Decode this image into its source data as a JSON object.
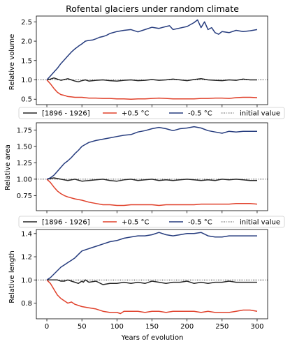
{
  "chart_data": [
    {
      "type": "line",
      "title": "Rofental glaciers under random climate",
      "ylabel": "Relative volume",
      "xlabel": "",
      "xlim": [
        -15,
        315
      ],
      "ylim": [
        0.36,
        2.65
      ],
      "xticks": [
        0,
        50,
        100,
        150,
        200,
        250,
        300
      ],
      "xtick_labels": [
        "",
        "",
        "",
        "",
        "",
        "",
        ""
      ],
      "yticks": [
        0.5,
        1.0,
        1.5,
        2.0,
        2.5
      ],
      "ytick_labels": [
        "0.5",
        "1.0",
        "1.5",
        "2.0",
        "2.5"
      ],
      "grid": false,
      "legend_position": "bottom",
      "reference_line": 1.0,
      "series": [
        {
          "name": "[1896 - 1926]",
          "color": "#262626",
          "x": [
            0,
            5,
            10,
            15,
            20,
            25,
            30,
            35,
            40,
            45,
            50,
            55,
            60,
            70,
            80,
            90,
            100,
            110,
            120,
            130,
            140,
            150,
            160,
            170,
            180,
            190,
            200,
            210,
            220,
            230,
            240,
            250,
            260,
            270,
            280,
            290,
            300
          ],
          "values": [
            1.0,
            1.02,
            1.05,
            1.02,
            0.99,
            1.01,
            1.03,
            1.0,
            0.97,
            0.95,
            0.98,
            1.0,
            0.97,
            0.99,
            1.0,
            0.98,
            0.97,
            0.99,
            1.0,
            0.98,
            0.99,
            1.01,
            0.99,
            1.0,
            1.02,
            1.0,
            0.98,
            1.01,
            1.03,
            1.0,
            0.99,
            0.98,
            1.0,
            0.99,
            1.02,
            1.0,
            1.0
          ]
        },
        {
          "name": "+0.5 °C",
          "color": "#e0402a",
          "x": [
            0,
            5,
            10,
            15,
            20,
            25,
            30,
            35,
            40,
            50,
            60,
            70,
            80,
            90,
            100,
            110,
            120,
            130,
            140,
            150,
            160,
            170,
            180,
            190,
            200,
            210,
            220,
            230,
            240,
            250,
            260,
            270,
            280,
            290,
            300
          ],
          "values": [
            1.0,
            0.9,
            0.78,
            0.68,
            0.62,
            0.6,
            0.57,
            0.56,
            0.55,
            0.55,
            0.53,
            0.53,
            0.52,
            0.52,
            0.51,
            0.51,
            0.5,
            0.51,
            0.51,
            0.52,
            0.53,
            0.52,
            0.51,
            0.51,
            0.51,
            0.51,
            0.52,
            0.52,
            0.53,
            0.53,
            0.52,
            0.54,
            0.55,
            0.55,
            0.54
          ]
        },
        {
          "name": "-0.5 °C",
          "color": "#263c7e",
          "x": [
            0,
            5,
            10,
            15,
            20,
            25,
            30,
            35,
            40,
            45,
            50,
            55,
            60,
            65,
            70,
            75,
            80,
            85,
            90,
            100,
            110,
            120,
            130,
            140,
            150,
            160,
            170,
            175,
            180,
            190,
            200,
            210,
            215,
            220,
            225,
            230,
            235,
            240,
            245,
            250,
            260,
            270,
            280,
            290,
            300
          ],
          "values": [
            1.0,
            1.1,
            1.2,
            1.3,
            1.42,
            1.52,
            1.62,
            1.72,
            1.8,
            1.87,
            1.93,
            2.0,
            2.02,
            2.03,
            2.06,
            2.1,
            2.12,
            2.15,
            2.2,
            2.25,
            2.28,
            2.3,
            2.24,
            2.3,
            2.36,
            2.33,
            2.38,
            2.4,
            2.3,
            2.34,
            2.38,
            2.48,
            2.55,
            2.35,
            2.5,
            2.3,
            2.35,
            2.22,
            2.18,
            2.25,
            2.22,
            2.28,
            2.25,
            2.27,
            2.3
          ]
        }
      ],
      "reference_name": "initial value"
    },
    {
      "type": "line",
      "title": "",
      "ylabel": "Relative area",
      "xlabel": "",
      "xlim": [
        -15,
        315
      ],
      "ylim": [
        0.52,
        1.86
      ],
      "xticks": [
        0,
        50,
        100,
        150,
        200,
        250,
        300
      ],
      "xtick_labels": [
        "",
        "",
        "",
        "",
        "",
        "",
        ""
      ],
      "yticks": [
        0.75,
        1.0,
        1.25,
        1.5,
        1.75
      ],
      "ytick_labels": [
        "0.75",
        "1.00",
        "1.25",
        "1.50",
        "1.75"
      ],
      "grid": false,
      "legend_position": "bottom",
      "reference_line": 1.0,
      "series": [
        {
          "name": "[1896 - 1926]",
          "color": "#262626",
          "x": [
            0,
            10,
            20,
            30,
            40,
            50,
            60,
            70,
            80,
            90,
            100,
            110,
            120,
            130,
            140,
            150,
            160,
            170,
            180,
            190,
            200,
            210,
            220,
            230,
            240,
            250,
            260,
            270,
            280,
            290,
            300
          ],
          "values": [
            1.0,
            1.02,
            1.0,
            0.98,
            1.0,
            0.97,
            0.98,
            0.99,
            1.0,
            0.98,
            0.97,
            0.99,
            1.0,
            0.98,
            0.99,
            1.0,
            0.98,
            0.99,
            0.98,
            0.99,
            1.0,
            0.99,
            0.98,
            0.99,
            0.98,
            1.0,
            0.99,
            1.0,
            0.99,
            0.98,
            0.98
          ]
        },
        {
          "name": "+0.5 °C",
          "color": "#e0402a",
          "x": [
            0,
            5,
            10,
            15,
            20,
            25,
            30,
            40,
            50,
            60,
            70,
            80,
            90,
            100,
            110,
            120,
            130,
            140,
            150,
            160,
            170,
            180,
            190,
            200,
            210,
            220,
            230,
            240,
            250,
            260,
            270,
            280,
            290,
            300
          ],
          "values": [
            1.0,
            0.95,
            0.88,
            0.82,
            0.78,
            0.75,
            0.73,
            0.7,
            0.68,
            0.65,
            0.63,
            0.61,
            0.61,
            0.6,
            0.6,
            0.61,
            0.61,
            0.61,
            0.61,
            0.6,
            0.61,
            0.61,
            0.61,
            0.61,
            0.61,
            0.62,
            0.62,
            0.62,
            0.62,
            0.62,
            0.63,
            0.63,
            0.63,
            0.62
          ]
        },
        {
          "name": "-0.5 °C",
          "color": "#263c7e",
          "x": [
            0,
            5,
            10,
            15,
            20,
            25,
            30,
            35,
            40,
            45,
            50,
            55,
            60,
            70,
            80,
            90,
            100,
            110,
            120,
            130,
            140,
            150,
            160,
            170,
            180,
            190,
            200,
            210,
            220,
            230,
            240,
            250,
            260,
            270,
            280,
            290,
            300
          ],
          "values": [
            1.0,
            1.02,
            1.06,
            1.12,
            1.18,
            1.24,
            1.28,
            1.33,
            1.39,
            1.44,
            1.5,
            1.53,
            1.56,
            1.59,
            1.61,
            1.63,
            1.65,
            1.67,
            1.68,
            1.72,
            1.74,
            1.77,
            1.79,
            1.77,
            1.74,
            1.77,
            1.78,
            1.8,
            1.78,
            1.74,
            1.72,
            1.7,
            1.73,
            1.72,
            1.73,
            1.73,
            1.73
          ]
        }
      ],
      "reference_name": "initial value"
    },
    {
      "type": "line",
      "title": "",
      "ylabel": "Relative length",
      "xlabel": "Years of evolution",
      "xlim": [
        -15,
        315
      ],
      "ylim": [
        0.665,
        1.435
      ],
      "xticks": [
        0,
        50,
        100,
        150,
        200,
        250,
        300
      ],
      "xtick_labels": [
        "0",
        "50",
        "100",
        "150",
        "200",
        "250",
        "300"
      ],
      "yticks": [
        0.8,
        1.0,
        1.2,
        1.4
      ],
      "ytick_labels": [
        "0.8",
        "1.0",
        "1.2",
        "1.4"
      ],
      "grid": false,
      "legend_position": "none",
      "reference_line": 1.0,
      "series": [
        {
          "name": "[1896 - 1926]",
          "color": "#262626",
          "x": [
            0,
            5,
            10,
            15,
            20,
            25,
            30,
            35,
            40,
            45,
            50,
            52,
            55,
            60,
            70,
            80,
            90,
            100,
            110,
            120,
            130,
            140,
            150,
            160,
            170,
            180,
            190,
            200,
            210,
            220,
            230,
            240,
            250,
            260,
            270,
            280,
            290,
            300
          ],
          "values": [
            1.0,
            1.0,
            1.0,
            1.0,
            0.99,
            0.99,
            1.0,
            0.99,
            0.98,
            0.97,
            0.99,
            0.98,
            1.0,
            0.98,
            0.99,
            0.96,
            0.97,
            0.97,
            0.98,
            0.97,
            0.98,
            0.97,
            0.99,
            0.98,
            0.97,
            0.98,
            0.98,
            0.99,
            0.97,
            0.98,
            0.97,
            0.98,
            0.98,
            0.99,
            0.98,
            0.98,
            0.98,
            0.98
          ]
        },
        {
          "name": "+0.5 °C",
          "color": "#e0402a",
          "x": [
            0,
            5,
            10,
            15,
            20,
            25,
            30,
            35,
            40,
            50,
            60,
            70,
            80,
            90,
            100,
            105,
            110,
            120,
            130,
            140,
            150,
            160,
            170,
            180,
            190,
            200,
            210,
            220,
            230,
            240,
            250,
            260,
            270,
            280,
            290,
            300
          ],
          "values": [
            1.0,
            0.97,
            0.92,
            0.87,
            0.84,
            0.82,
            0.8,
            0.81,
            0.79,
            0.77,
            0.76,
            0.75,
            0.73,
            0.72,
            0.72,
            0.71,
            0.73,
            0.73,
            0.73,
            0.72,
            0.73,
            0.73,
            0.72,
            0.73,
            0.73,
            0.73,
            0.73,
            0.72,
            0.73,
            0.72,
            0.72,
            0.72,
            0.73,
            0.74,
            0.74,
            0.73
          ]
        },
        {
          "name": "-0.5 °C",
          "color": "#263c7e",
          "x": [
            0,
            5,
            10,
            15,
            20,
            25,
            30,
            35,
            40,
            45,
            50,
            55,
            60,
            70,
            80,
            90,
            100,
            110,
            120,
            130,
            140,
            150,
            160,
            170,
            180,
            190,
            200,
            210,
            220,
            230,
            240,
            250,
            260,
            270,
            280,
            290,
            300
          ],
          "values": [
            1.0,
            1.02,
            1.05,
            1.08,
            1.11,
            1.13,
            1.15,
            1.17,
            1.19,
            1.22,
            1.25,
            1.26,
            1.27,
            1.29,
            1.31,
            1.33,
            1.34,
            1.36,
            1.37,
            1.38,
            1.38,
            1.39,
            1.41,
            1.39,
            1.38,
            1.39,
            1.4,
            1.4,
            1.41,
            1.38,
            1.37,
            1.37,
            1.38,
            1.38,
            1.38,
            1.38,
            1.38
          ]
        }
      ],
      "reference_name": "initial value"
    }
  ],
  "legend": {
    "items": [
      {
        "label": "[1896 - 1926]",
        "color": "#262626",
        "style": "solid"
      },
      {
        "label": "+0.5 °C",
        "color": "#e0402a",
        "style": "solid"
      },
      {
        "label": "-0.5 °C",
        "color": "#263c7e",
        "style": "solid"
      },
      {
        "label": "initial value",
        "color": "#000000",
        "style": "dotted"
      }
    ]
  }
}
